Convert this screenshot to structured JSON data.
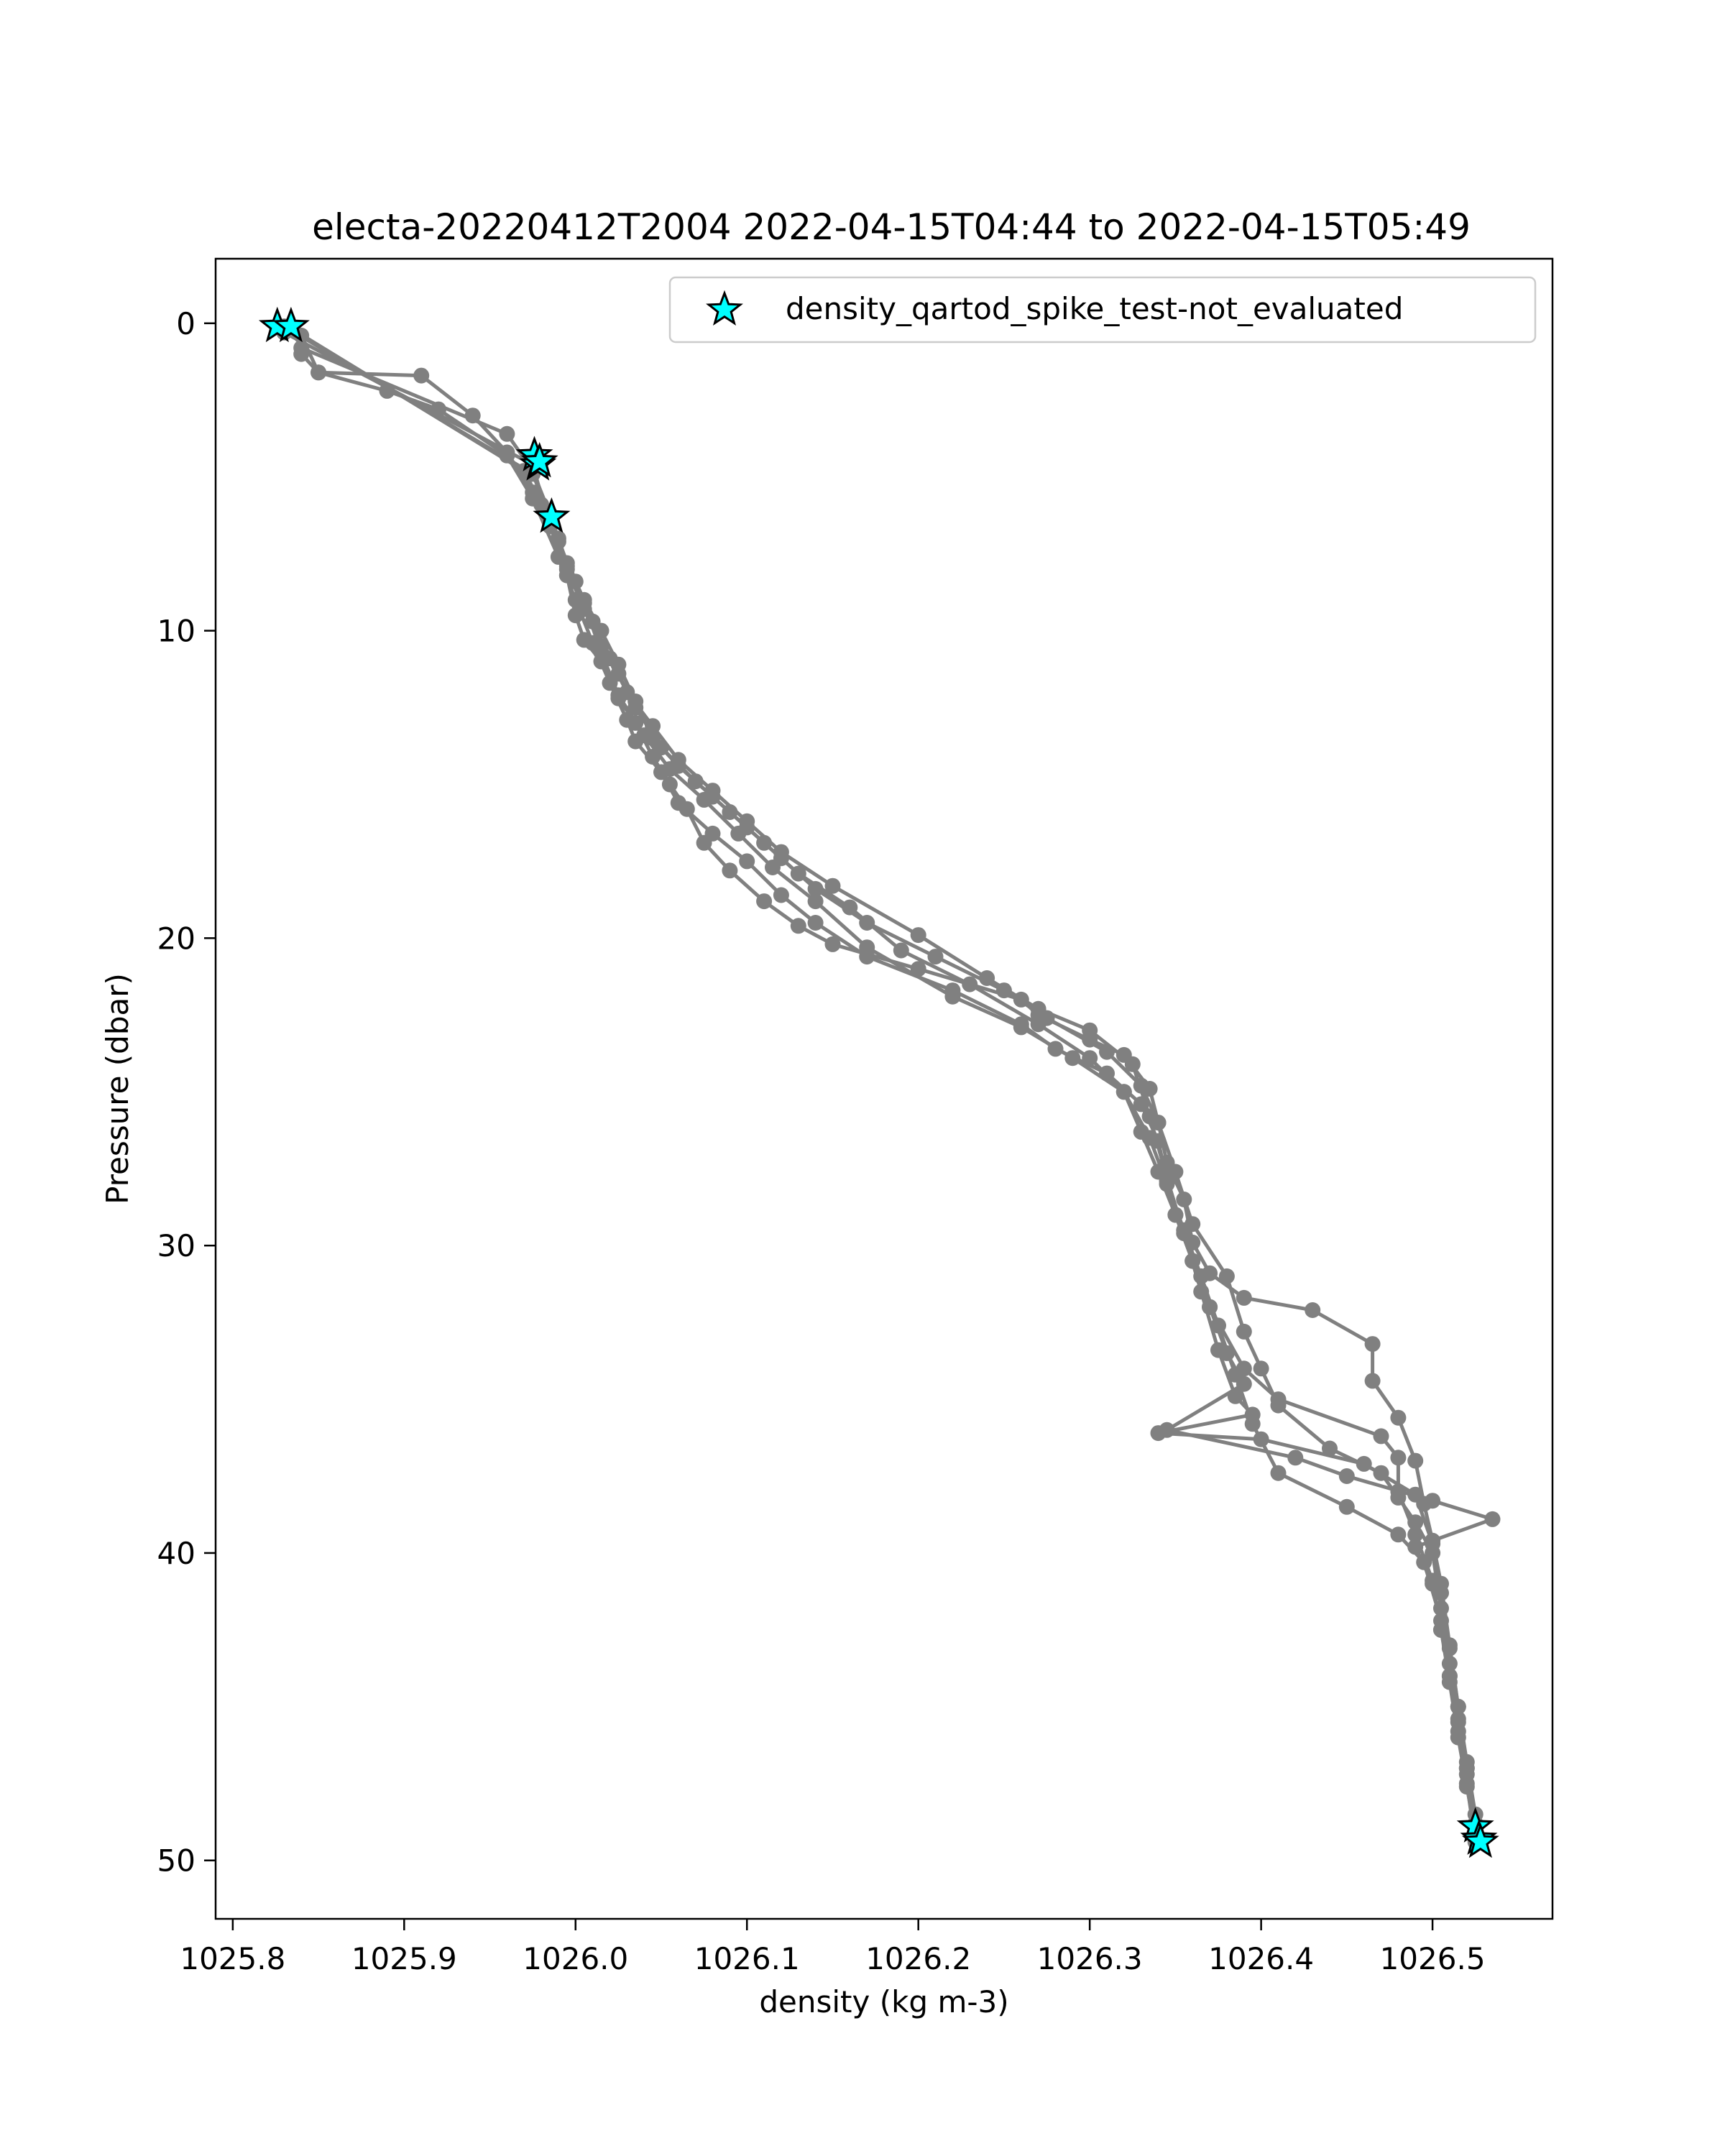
{
  "chart_data": {
    "type": "scatter",
    "title": "electa-20220412T2004 2022-04-15T04:44 to 2022-04-15T05:49",
    "xlabel": "density (kg m-3)",
    "ylabel": "Pressure (dbar)",
    "xlim": [
      1025.79,
      1026.57
    ],
    "ylim": [
      51.9,
      -2.1
    ],
    "y_inverted": true,
    "xticks": [
      "1025.8",
      "1025.9",
      "1026.0",
      "1026.1",
      "1026.2",
      "1026.3",
      "1026.4",
      "1026.5"
    ],
    "xtick_values": [
      1025.8,
      1025.9,
      1026.0,
      1026.1,
      1026.2,
      1026.3,
      1026.4,
      1026.5
    ],
    "yticks": [
      "0",
      "10",
      "20",
      "30",
      "40",
      "50"
    ],
    "ytick_values": [
      0,
      10,
      20,
      30,
      40,
      50
    ],
    "grid": false,
    "legend": {
      "position": "upper-right",
      "entries": [
        "density_qartod_spike_test-not_evaluated"
      ]
    },
    "colors": {
      "profile": "#808080",
      "flag": "#00ffff",
      "flag_edge": "#000000"
    },
    "series": [
      {
        "x": [
          1025.84,
          1025.85,
          1025.91,
          1025.94,
          1025.96,
          1025.975,
          1025.99,
          1025.995,
          1026.0,
          1026.005,
          1026.015,
          1026.025,
          1026.035,
          1026.045,
          1026.055,
          1026.065,
          1026.075,
          1026.09,
          1026.11,
          1026.13,
          1026.15,
          1026.2,
          1026.26,
          1026.27,
          1026.3,
          1026.32,
          1026.335,
          1026.34,
          1026.345,
          1026.355,
          1026.36,
          1026.37,
          1026.39,
          1026.43,
          1026.465,
          1026.465,
          1026.48,
          1026.49,
          1026.495,
          1026.5,
          1026.505,
          1026.51,
          1026.515,
          1026.52,
          1026.525
        ],
        "y": [
          1.0,
          1.6,
          1.7,
          3.0,
          4.2,
          5.5,
          7.0,
          8.2,
          9.5,
          10.3,
          11.0,
          12.2,
          13.0,
          14.1,
          15.0,
          15.8,
          16.9,
          17.8,
          18.8,
          19.6,
          20.2,
          21.0,
          22.0,
          22.5,
          23.3,
          23.8,
          24.9,
          26.0,
          27.3,
          28.5,
          29.9,
          30.9,
          31.7,
          32.1,
          33.2,
          34.4,
          35.6,
          37.0,
          38.4,
          39.6,
          41.0,
          43.0,
          45.0,
          47.0,
          48.8
        ]
      },
      {
        "x": [
          1025.84,
          1025.85,
          1025.89,
          1025.92,
          1025.96,
          1025.975,
          1025.99,
          1026.0,
          1026.01,
          1026.02,
          1026.03,
          1026.035,
          1026.05,
          1026.06,
          1026.08,
          1026.1,
          1026.12,
          1026.14,
          1026.17,
          1026.22,
          1026.26,
          1026.28,
          1026.31,
          1026.33,
          1026.34,
          1026.345,
          1026.35,
          1026.36,
          1026.37,
          1026.39,
          1026.41,
          1026.47,
          1026.48,
          1026.48,
          1026.49,
          1026.5,
          1026.505,
          1026.51,
          1026.515,
          1026.52,
          1026.525
        ],
        "y": [
          0.4,
          1.6,
          2.2,
          2.8,
          4.3,
          5.7,
          7.6,
          9.0,
          10.4,
          11.7,
          12.9,
          13.6,
          14.6,
          15.6,
          16.6,
          17.5,
          18.6,
          19.5,
          20.6,
          21.7,
          22.8,
          23.6,
          24.4,
          25.4,
          26.6,
          27.9,
          29.0,
          30.5,
          32.0,
          34.0,
          35.0,
          36.2,
          36.9,
          38.0,
          39.4,
          40.9,
          42.5,
          44.0,
          45.5,
          47.0,
          49.0
        ]
      },
      {
        "x": [
          1025.84,
          1025.96,
          1025.975,
          1025.985,
          1025.995,
          1026.005,
          1026.015,
          1026.025,
          1026.035,
          1026.045,
          1026.06,
          1026.08,
          1026.1,
          1026.12,
          1026.14,
          1026.17,
          1026.21,
          1026.25,
          1026.275,
          1026.31,
          1026.33,
          1026.34,
          1026.35,
          1026.36,
          1026.38,
          1026.39,
          1026.4,
          1026.41,
          1026.44,
          1026.47,
          1026.48,
          1026.49,
          1026.5,
          1026.505,
          1026.51,
          1026.515,
          1026.52,
          1026.525
        ],
        "y": [
          0.8,
          3.6,
          4.8,
          6.2,
          7.8,
          9.0,
          10.0,
          11.1,
          12.3,
          13.5,
          14.4,
          15.4,
          16.4,
          17.4,
          18.4,
          19.5,
          20.6,
          21.7,
          22.6,
          23.7,
          24.8,
          26.0,
          27.6,
          29.3,
          31.0,
          32.8,
          34.0,
          35.2,
          36.6,
          37.4,
          38.2,
          39.0,
          40.0,
          41.8,
          43.6,
          45.4,
          47.2,
          49.2
        ]
      },
      {
        "x": [
          1025.835,
          1025.97,
          1025.98,
          1025.99,
          1026.0,
          1026.01,
          1026.02,
          1026.03,
          1026.045,
          1026.06,
          1026.08,
          1026.1,
          1026.12,
          1026.15,
          1026.2,
          1026.24,
          1026.27,
          1026.3,
          1026.325,
          1026.335,
          1026.345,
          1026.355,
          1026.365,
          1026.375,
          1026.385,
          1026.395,
          1026.34,
          1026.4,
          1026.46,
          1026.49,
          1026.5,
          1026.505,
          1026.51,
          1026.515,
          1026.52,
          1026.525
        ],
        "y": [
          0.2,
          4.8,
          5.9,
          7.1,
          8.4,
          9.7,
          10.9,
          12.0,
          13.1,
          14.2,
          15.2,
          16.2,
          17.2,
          18.3,
          19.9,
          21.3,
          22.3,
          23.0,
          24.1,
          25.8,
          27.8,
          29.6,
          31.5,
          33.4,
          34.9,
          35.5,
          36.1,
          36.3,
          37.1,
          38.1,
          39.7,
          41.3,
          43.1,
          45.0,
          46.8,
          48.5
        ]
      },
      {
        "x": [
          1025.83,
          1025.975,
          1025.985,
          1025.995,
          1026.005,
          1026.015,
          1026.025,
          1026.035,
          1026.05,
          1026.07,
          1026.09,
          1026.11,
          1026.13,
          1026.16,
          1026.19,
          1026.23,
          1026.27,
          1026.3,
          1026.32,
          1026.33,
          1026.34,
          1026.35,
          1026.36,
          1026.37,
          1026.38,
          1026.39,
          1026.345,
          1026.42,
          1026.45,
          1026.5,
          1026.535,
          1026.49,
          1026.5,
          1026.505,
          1026.51,
          1026.515,
          1026.52,
          1026.525
        ],
        "y": [
          0.3,
          4.6,
          6.6,
          8.0,
          9.3,
          10.5,
          11.4,
          12.5,
          13.8,
          14.9,
          15.9,
          16.9,
          17.9,
          19.0,
          20.4,
          21.5,
          22.8,
          23.9,
          25.0,
          26.3,
          27.6,
          29.0,
          30.5,
          32.0,
          33.5,
          34.5,
          36.0,
          36.9,
          37.5,
          38.3,
          38.9,
          39.8,
          41.0,
          42.5,
          44.2,
          46.0,
          47.6,
          49.1
        ]
      },
      {
        "x": [
          1025.83,
          1025.975,
          1025.985,
          1025.995,
          1026.005,
          1026.015,
          1026.025,
          1026.04,
          1026.055,
          1026.075,
          1026.095,
          1026.115,
          1026.14,
          1026.17,
          1026.22,
          1026.26,
          1026.29,
          1026.32,
          1026.335,
          1026.345,
          1026.355,
          1026.365,
          1026.375,
          1026.385,
          1026.395,
          1026.41,
          1026.45,
          1026.48,
          1026.495,
          1026.505,
          1026.51,
          1026.515,
          1026.52,
          1026.525
        ],
        "y": [
          0.1,
          4.9,
          6.3,
          7.9,
          9.1,
          10.7,
          12.1,
          13.4,
          14.5,
          15.5,
          16.6,
          17.7,
          18.8,
          20.3,
          21.9,
          22.9,
          23.9,
          25.0,
          26.5,
          28.0,
          29.5,
          31.0,
          32.6,
          34.2,
          35.8,
          37.4,
          38.5,
          39.4,
          40.3,
          42.2,
          44.0,
          45.8,
          47.5,
          49.4
        ]
      }
    ],
    "flags": {
      "name": "density_qartod_spike_test-not_evaluated",
      "x": [
        1025.826,
        1025.834,
        1025.976,
        1025.978,
        1025.979,
        1025.986,
        1026.525,
        1026.527,
        1026.528
      ],
      "y": [
        0.1,
        0.1,
        4.3,
        4.6,
        4.5,
        6.3,
        48.9,
        49.3,
        49.4
      ]
    }
  }
}
